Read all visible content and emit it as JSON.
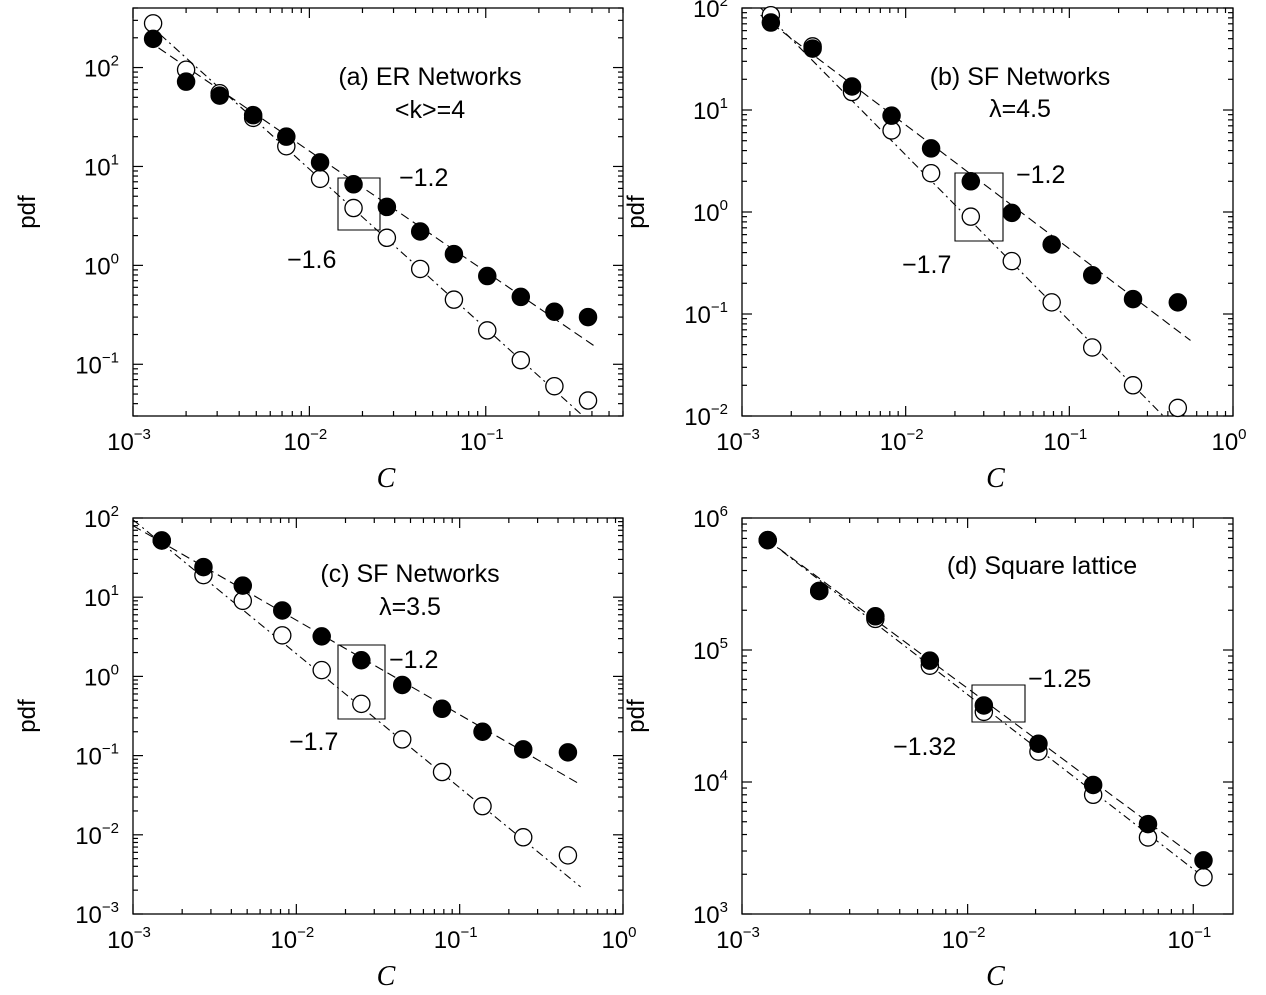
{
  "chart_data": [
    {
      "type": "scatter",
      "panel_label": "(a) ER Networks",
      "panel_param": "<k>=4",
      "xlabel": "C",
      "ylabel": "pdf",
      "xscale": "log",
      "yscale": "log",
      "xlim": [
        0.001,
        0.6
      ],
      "ylim": [
        0.03,
        400
      ],
      "xticks": [
        {
          "base": "10",
          "exp": "−3"
        },
        {
          "base": "10",
          "exp": "−2"
        },
        {
          "base": "10",
          "exp": "−1"
        }
      ],
      "yticks": [
        {
          "base": "10",
          "exp": "−1"
        },
        {
          "base": "10",
          "exp": "0"
        },
        {
          "base": "10",
          "exp": "1"
        },
        {
          "base": "10",
          "exp": "2"
        }
      ],
      "series": [
        {
          "marker": "filled-circle",
          "x": [
            0.0013,
            0.002,
            0.0031,
            0.0048,
            0.0074,
            0.0115,
            0.0178,
            0.0275,
            0.0425,
            0.066,
            0.102,
            0.158,
            0.245,
            0.38
          ],
          "y": [
            195,
            72,
            52,
            33,
            20,
            11,
            6.6,
            3.9,
            2.2,
            1.3,
            0.78,
            0.48,
            0.34,
            0.3
          ]
        },
        {
          "marker": "open-circle",
          "x": [
            0.0013,
            0.002,
            0.0031,
            0.0048,
            0.0074,
            0.0115,
            0.0178,
            0.0275,
            0.0425,
            0.066,
            0.102,
            0.158,
            0.245,
            0.38
          ],
          "y": [
            280,
            95,
            55,
            31,
            16,
            7.5,
            3.8,
            1.9,
            0.92,
            0.45,
            0.22,
            0.11,
            0.06,
            0.043
          ]
        }
      ],
      "fits": [
        {
          "style": "dashed",
          "x": [
            0.0012,
            0.42
          ],
          "y": [
            190,
            0.15
          ]
        },
        {
          "style": "dashdot",
          "x": [
            0.0012,
            0.42
          ],
          "y": [
            285,
            0.023
          ]
        }
      ],
      "slope_labels": [
        "−1.2",
        "−1.6"
      ]
    },
    {
      "type": "scatter",
      "panel_label": "(b) SF Networks",
      "panel_param": "λ=4.5",
      "xlabel": "C",
      "ylabel": "pdf",
      "xscale": "log",
      "yscale": "log",
      "xlim": [
        0.001,
        1
      ],
      "ylim": [
        0.01,
        100
      ],
      "xticks": [
        {
          "base": "10",
          "exp": "−3"
        },
        {
          "base": "10",
          "exp": "−2"
        },
        {
          "base": "10",
          "exp": "−1"
        },
        {
          "base": "10",
          "exp": "0"
        }
      ],
      "yticks": [
        {
          "base": "10",
          "exp": "−2"
        },
        {
          "base": "10",
          "exp": "−1"
        },
        {
          "base": "10",
          "exp": "0"
        },
        {
          "base": "10",
          "exp": "1"
        },
        {
          "base": "10",
          "exp": "2"
        }
      ],
      "series": [
        {
          "marker": "filled-circle",
          "x": [
            0.0015,
            0.0027,
            0.0047,
            0.0082,
            0.0143,
            0.025,
            0.0445,
            0.078,
            0.138,
            0.245,
            0.46
          ],
          "y": [
            72,
            40,
            17,
            8.8,
            4.2,
            2.0,
            0.98,
            0.48,
            0.24,
            0.14,
            0.13
          ]
        },
        {
          "marker": "open-circle",
          "x": [
            0.0015,
            0.0027,
            0.0047,
            0.0082,
            0.0143,
            0.025,
            0.0445,
            0.078,
            0.138,
            0.245,
            0.46
          ],
          "y": [
            85,
            42,
            15,
            6.3,
            2.4,
            0.9,
            0.33,
            0.13,
            0.047,
            0.02,
            0.012
          ]
        }
      ],
      "fits": [
        {
          "style": "dashed",
          "x": [
            0.0013,
            0.55
          ],
          "y": [
            85,
            0.055
          ]
        },
        {
          "style": "dashdot",
          "x": [
            0.0013,
            0.38
          ],
          "y": [
            100,
            0.0098
          ]
        }
      ],
      "slope_labels": [
        "−1.2",
        "−1.7"
      ]
    },
    {
      "type": "scatter",
      "panel_label": "(c) SF Networks",
      "panel_param": "λ=3.5",
      "xlabel": "C",
      "ylabel": "pdf",
      "xscale": "log",
      "yscale": "log",
      "xlim": [
        0.001,
        1
      ],
      "ylim": [
        0.001,
        100
      ],
      "xticks": [
        {
          "base": "10",
          "exp": "−3"
        },
        {
          "base": "10",
          "exp": "−2"
        },
        {
          "base": "10",
          "exp": "−1"
        },
        {
          "base": "10",
          "exp": "0"
        }
      ],
      "yticks": [
        {
          "base": "10",
          "exp": "−3"
        },
        {
          "base": "10",
          "exp": "−2"
        },
        {
          "base": "10",
          "exp": "−1"
        },
        {
          "base": "10",
          "exp": "0"
        },
        {
          "base": "10",
          "exp": "1"
        },
        {
          "base": "10",
          "exp": "2"
        }
      ],
      "series": [
        {
          "marker": "filled-circle",
          "x": [
            0.0015,
            0.0027,
            0.0047,
            0.0082,
            0.0143,
            0.025,
            0.0445,
            0.078,
            0.138,
            0.245,
            0.46
          ],
          "y": [
            52,
            24,
            14,
            6.8,
            3.2,
            1.6,
            0.78,
            0.39,
            0.2,
            0.12,
            0.11
          ]
        },
        {
          "marker": "open-circle",
          "x": [
            0.0015,
            0.0027,
            0.0047,
            0.0082,
            0.0143,
            0.025,
            0.0445,
            0.078,
            0.138,
            0.245,
            0.46
          ],
          "y": [
            52,
            19,
            9,
            3.3,
            1.2,
            0.45,
            0.16,
            0.062,
            0.023,
            0.0093,
            0.0055
          ]
        }
      ],
      "fits": [
        {
          "style": "dashed",
          "x": [
            0.001,
            0.55
          ],
          "y": [
            80,
            0.043
          ]
        },
        {
          "style": "dashdot",
          "x": [
            0.001,
            0.55
          ],
          "y": [
            95,
            0.0022
          ]
        }
      ],
      "slope_labels": [
        "−1.2",
        "−1.7"
      ]
    },
    {
      "type": "scatter",
      "panel_label": "(d) Square lattice",
      "panel_param": "",
      "xlabel": "C",
      "ylabel": "pdf",
      "xscale": "log",
      "yscale": "log",
      "xlim": [
        0.001,
        0.15
      ],
      "ylim": [
        1000,
        1000000
      ],
      "xticks": [
        {
          "base": "10",
          "exp": "−3"
        },
        {
          "base": "10",
          "exp": "−2"
        },
        {
          "base": "10",
          "exp": "−1"
        }
      ],
      "yticks": [
        {
          "base": "10",
          "exp": "3"
        },
        {
          "base": "10",
          "exp": "4"
        },
        {
          "base": "10",
          "exp": "5"
        },
        {
          "base": "10",
          "exp": "6"
        }
      ],
      "series": [
        {
          "marker": "filled-circle",
          "x": [
            0.0013,
            0.0022,
            0.0039,
            0.0068,
            0.0118,
            0.0206,
            0.036,
            0.063,
            0.111
          ],
          "y": [
            680000,
            280000,
            180000,
            83000,
            38000,
            19500,
            9500,
            4800,
            2550
          ]
        },
        {
          "marker": "open-circle",
          "x": [
            0.0013,
            0.0022,
            0.0039,
            0.0068,
            0.0118,
            0.0206,
            0.036,
            0.063,
            0.111
          ],
          "y": [
            680000,
            280000,
            172000,
            76000,
            34000,
            17000,
            8000,
            3800,
            1900
          ]
        }
      ],
      "fits": [
        {
          "style": "dashed",
          "x": [
            0.0013,
            0.11
          ],
          "y": [
            680000,
            2450
          ]
        },
        {
          "style": "dashdot",
          "x": [
            0.0013,
            0.11
          ],
          "y": [
            680000,
            1930
          ]
        }
      ],
      "slope_labels": [
        "−1.25",
        "−1.32"
      ]
    }
  ]
}
